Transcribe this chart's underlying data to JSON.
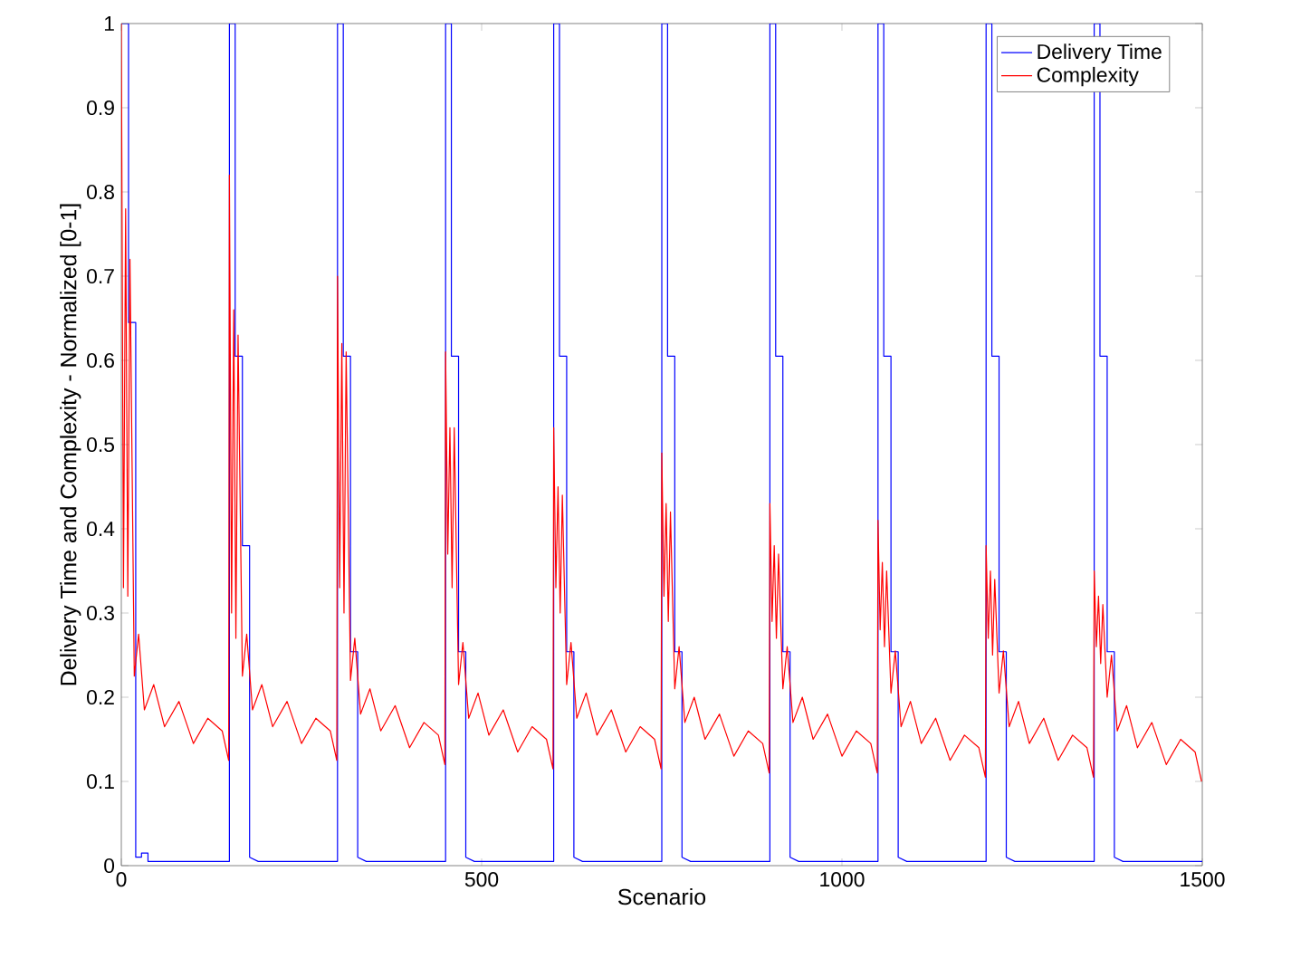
{
  "chart_data": {
    "type": "line",
    "xlabel": "Scenario",
    "ylabel": "Delivery Time and Complexity - Normalized [0-1]",
    "xlim": [
      0,
      1500
    ],
    "ylim": [
      0,
      1
    ],
    "xticks": [
      0,
      500,
      1000,
      1500
    ],
    "yticks": [
      0,
      0.1,
      0.2,
      0.3,
      0.4,
      0.5,
      0.6,
      0.7,
      0.8,
      0.9,
      1
    ],
    "legend": "top right",
    "grid": false,
    "marker": "none",
    "line_style": "solid",
    "series": [
      {
        "name": "Delivery Time",
        "color": "#0000ff",
        "x": [
          0,
          10,
          10,
          20,
          20,
          28,
          28,
          37,
          37,
          150,
          150,
          158,
          158,
          168,
          168,
          178,
          178,
          190,
          300,
          300,
          308,
          308,
          318,
          318,
          328,
          328,
          340,
          450,
          450,
          458,
          458,
          468,
          468,
          478,
          478,
          490,
          600,
          600,
          608,
          608,
          618,
          618,
          628,
          628,
          640,
          750,
          750,
          758,
          758,
          768,
          768,
          778,
          778,
          790,
          900,
          900,
          908,
          908,
          918,
          918,
          928,
          928,
          940,
          1050,
          1050,
          1058,
          1058,
          1068,
          1068,
          1078,
          1078,
          1090,
          1200,
          1200,
          1208,
          1208,
          1218,
          1218,
          1228,
          1228,
          1240,
          1350,
          1350,
          1358,
          1358,
          1368,
          1368,
          1378,
          1378,
          1390,
          1500
        ],
        "values": [
          1,
          1,
          0.645,
          0.645,
          0.01,
          0.01,
          0.015,
          0.015,
          0.005,
          0.005,
          1,
          1,
          0.605,
          0.605,
          0.38,
          0.38,
          0.01,
          0.005,
          0.005,
          1,
          1,
          0.605,
          0.605,
          0.254,
          0.254,
          0.01,
          0.005,
          0.005,
          1,
          1,
          0.605,
          0.605,
          0.254,
          0.254,
          0.01,
          0.005,
          0.005,
          1,
          1,
          0.605,
          0.605,
          0.254,
          0.254,
          0.01,
          0.005,
          0.005,
          1,
          1,
          0.605,
          0.605,
          0.254,
          0.254,
          0.01,
          0.005,
          0.005,
          1,
          1,
          0.605,
          0.605,
          0.254,
          0.254,
          0.01,
          0.005,
          0.005,
          1,
          1,
          0.605,
          0.605,
          0.254,
          0.254,
          0.01,
          0.005,
          0.005,
          1,
          1,
          0.605,
          0.605,
          0.254,
          0.254,
          0.01,
          0.005,
          0.005,
          1,
          1,
          0.605,
          0.605,
          0.254,
          0.254,
          0.01,
          0.005,
          0.005
        ]
      },
      {
        "name": "Complexity",
        "color": "#ff0000",
        "x": [
          0,
          3,
          6,
          9,
          12,
          18,
          24,
          32,
          45,
          60,
          80,
          100,
          120,
          140,
          149,
          150,
          153,
          156,
          159,
          162,
          168,
          174,
          182,
          195,
          210,
          230,
          250,
          270,
          290,
          299,
          300,
          303,
          306,
          309,
          312,
          318,
          324,
          332,
          345,
          360,
          380,
          400,
          420,
          440,
          449,
          450,
          453,
          456,
          459,
          462,
          468,
          474,
          482,
          495,
          510,
          530,
          550,
          570,
          590,
          599,
          600,
          603,
          606,
          609,
          612,
          618,
          624,
          632,
          645,
          660,
          680,
          700,
          720,
          740,
          749,
          750,
          753,
          756,
          759,
          762,
          768,
          774,
          782,
          795,
          810,
          830,
          850,
          870,
          890,
          899,
          900,
          903,
          906,
          909,
          912,
          918,
          924,
          932,
          945,
          960,
          980,
          1000,
          1020,
          1040,
          1049,
          1050,
          1053,
          1056,
          1059,
          1062,
          1068,
          1074,
          1082,
          1095,
          1110,
          1130,
          1150,
          1170,
          1190,
          1199,
          1200,
          1203,
          1206,
          1209,
          1212,
          1218,
          1224,
          1232,
          1245,
          1260,
          1280,
          1300,
          1320,
          1340,
          1349,
          1350,
          1353,
          1356,
          1359,
          1362,
          1368,
          1374,
          1382,
          1395,
          1410,
          1430,
          1450,
          1470,
          1490,
          1499
        ],
        "values": [
          1,
          0.33,
          0.78,
          0.32,
          0.72,
          0.225,
          0.275,
          0.185,
          0.215,
          0.165,
          0.195,
          0.145,
          0.175,
          0.16,
          0.125,
          0.82,
          0.3,
          0.66,
          0.27,
          0.63,
          0.225,
          0.275,
          0.185,
          0.215,
          0.165,
          0.195,
          0.145,
          0.175,
          0.16,
          0.125,
          0.7,
          0.33,
          0.62,
          0.3,
          0.61,
          0.22,
          0.27,
          0.18,
          0.21,
          0.16,
          0.19,
          0.14,
          0.17,
          0.155,
          0.12,
          0.61,
          0.37,
          0.52,
          0.33,
          0.52,
          0.215,
          0.265,
          0.175,
          0.205,
          0.155,
          0.185,
          0.135,
          0.165,
          0.15,
          0.115,
          0.52,
          0.33,
          0.45,
          0.3,
          0.44,
          0.215,
          0.265,
          0.175,
          0.205,
          0.155,
          0.185,
          0.135,
          0.165,
          0.15,
          0.115,
          0.49,
          0.32,
          0.43,
          0.29,
          0.42,
          0.21,
          0.26,
          0.17,
          0.2,
          0.15,
          0.18,
          0.13,
          0.16,
          0.145,
          0.11,
          0.43,
          0.29,
          0.38,
          0.27,
          0.37,
          0.21,
          0.26,
          0.17,
          0.2,
          0.15,
          0.18,
          0.13,
          0.16,
          0.145,
          0.11,
          0.41,
          0.28,
          0.36,
          0.26,
          0.35,
          0.205,
          0.255,
          0.165,
          0.195,
          0.145,
          0.175,
          0.125,
          0.155,
          0.14,
          0.105,
          0.38,
          0.27,
          0.35,
          0.25,
          0.34,
          0.205,
          0.255,
          0.165,
          0.195,
          0.145,
          0.175,
          0.125,
          0.155,
          0.14,
          0.105,
          0.35,
          0.26,
          0.32,
          0.24,
          0.31,
          0.2,
          0.25,
          0.16,
          0.19,
          0.14,
          0.17,
          0.12,
          0.15,
          0.135,
          0.1
        ]
      }
    ]
  }
}
